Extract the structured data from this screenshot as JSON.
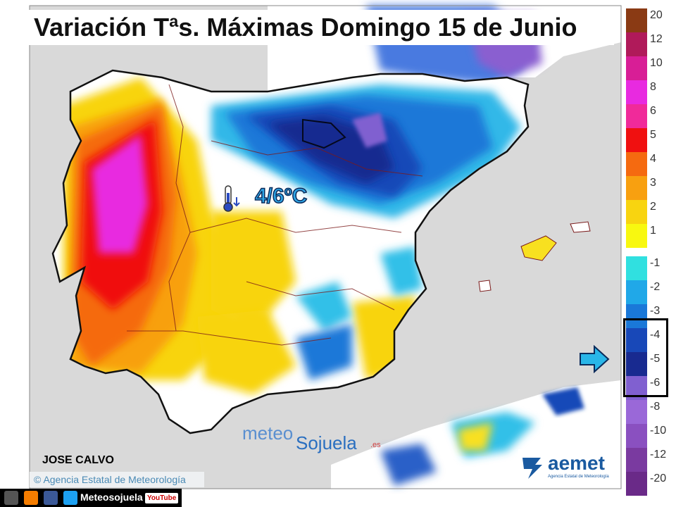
{
  "title": "Variación Tªs. Máximas Domingo 15 de Junio",
  "highlight_value": "4/6ºC",
  "author": "JOSE CALVO",
  "agency_credit": "Agencia Estatal de Meteorología",
  "watermark": {
    "part1": "meteo",
    "part2": "Sojuela",
    "suffix": ".es"
  },
  "logo": {
    "name": "aemet",
    "subtitle": "Agencia Estatal de Meteorología"
  },
  "social": {
    "label": "Meteosojuela",
    "youtube": "YouTube"
  },
  "legend": {
    "positive": [
      {
        "label": "20",
        "color": "#8a3a14"
      },
      {
        "label": "12",
        "color": "#b01a5a"
      },
      {
        "label": "10",
        "color": "#d81e96"
      },
      {
        "label": "8",
        "color": "#e82ae0"
      },
      {
        "label": "6",
        "color": "#f02a9a"
      },
      {
        "label": "5",
        "color": "#f01010"
      },
      {
        "label": "4",
        "color": "#f56a10"
      },
      {
        "label": "3",
        "color": "#f8a010"
      },
      {
        "label": "2",
        "color": "#f8d410"
      },
      {
        "label": "1",
        "color": "#f8f810"
      }
    ],
    "negative": [
      {
        "label": "-1",
        "color": "#30e0e0"
      },
      {
        "label": "-2",
        "color": "#20a8e8"
      },
      {
        "label": "-3",
        "color": "#1a78d8"
      },
      {
        "label": "-4",
        "color": "#1848b8"
      },
      {
        "label": "-5",
        "color": "#182a90"
      },
      {
        "label": "-6",
        "color": "#8060d0"
      },
      {
        "label": "-8",
        "color": "#9a68d8"
      },
      {
        "label": "-10",
        "color": "#8a50c0"
      },
      {
        "label": "-12",
        "color": "#7a3aa0"
      },
      {
        "label": "-20",
        "color": "#6a2a88"
      }
    ]
  }
}
